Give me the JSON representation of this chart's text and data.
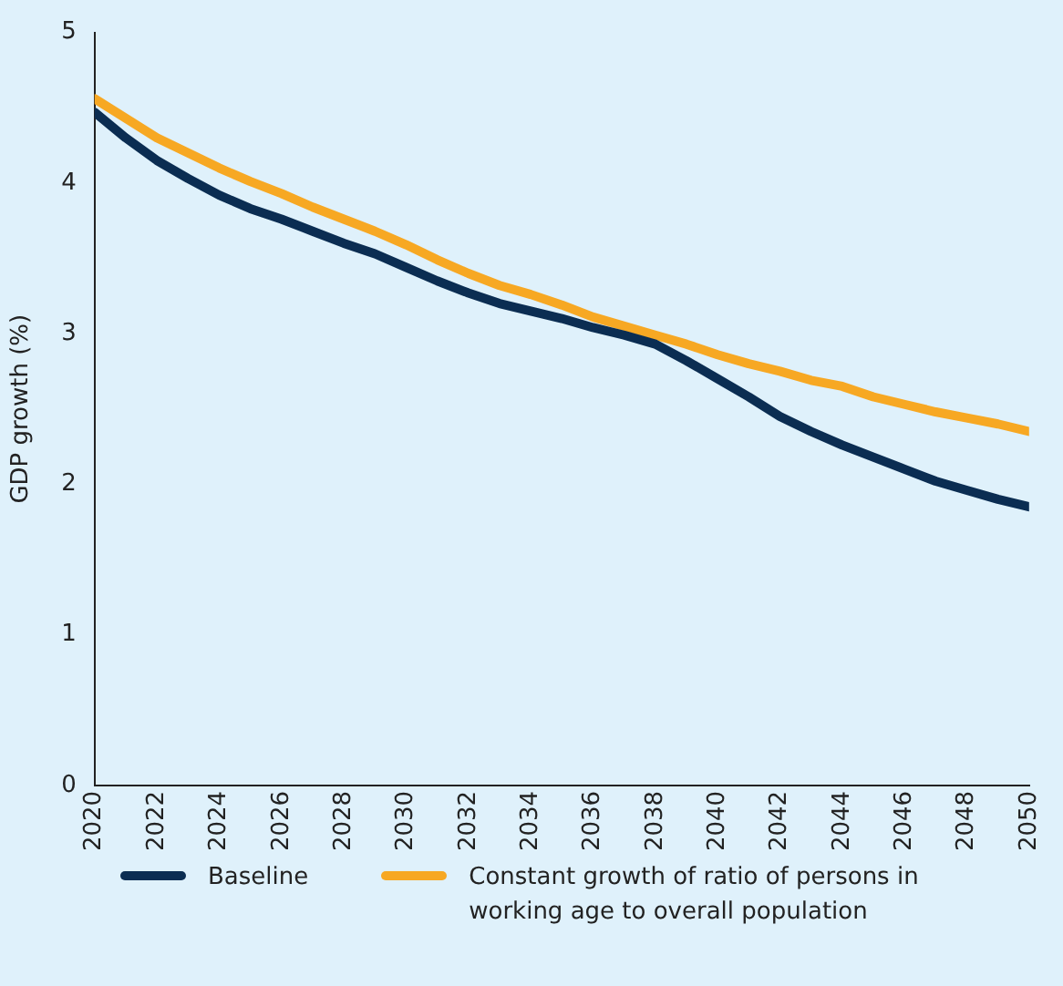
{
  "chart_data": {
    "type": "line",
    "ylabel": "GDP growth (%)",
    "x": [
      2020,
      2021,
      2022,
      2023,
      2024,
      2025,
      2026,
      2027,
      2028,
      2029,
      2030,
      2031,
      2032,
      2033,
      2034,
      2035,
      2036,
      2037,
      2038,
      2039,
      2040,
      2041,
      2042,
      2043,
      2044,
      2045,
      2046,
      2047,
      2048,
      2049,
      2050
    ],
    "xlim": [
      2020,
      2050
    ],
    "xticks": [
      2020,
      2022,
      2024,
      2026,
      2028,
      2030,
      2032,
      2034,
      2036,
      2038,
      2040,
      2042,
      2044,
      2046,
      2048,
      2050
    ],
    "ylim": [
      0,
      5
    ],
    "yticks": [
      0,
      1,
      2,
      3,
      4,
      5
    ],
    "grid": false,
    "legend": "bottom",
    "marker": "none",
    "line_style": "solid",
    "series": [
      {
        "name": "Baseline",
        "color": "#0b2d52",
        "values": [
          4.47,
          4.3,
          4.15,
          4.03,
          3.92,
          3.83,
          3.76,
          3.68,
          3.6,
          3.53,
          3.44,
          3.35,
          3.27,
          3.2,
          3.15,
          3.1,
          3.04,
          2.99,
          2.93,
          2.82,
          2.7,
          2.58,
          2.45,
          2.35,
          2.26,
          2.18,
          2.1,
          2.02,
          1.96,
          1.9,
          1.85
        ]
      },
      {
        "name": "Constant growth of ratio of persons in working age to overall population",
        "color": "#f7a823",
        "values": [
          4.56,
          4.43,
          4.3,
          4.2,
          4.1,
          4.01,
          3.93,
          3.84,
          3.76,
          3.68,
          3.59,
          3.49,
          3.4,
          3.32,
          3.26,
          3.19,
          3.11,
          3.05,
          2.99,
          2.93,
          2.86,
          2.8,
          2.75,
          2.69,
          2.65,
          2.58,
          2.53,
          2.48,
          2.44,
          2.4,
          2.35
        ]
      }
    ]
  }
}
